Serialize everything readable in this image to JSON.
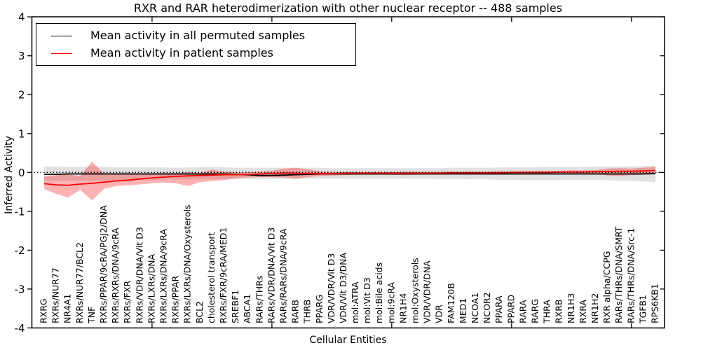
{
  "chart_data": {
    "type": "line",
    "title": "RXR and RAR heterodimerization with other nuclear receptor -- 488 samples",
    "xlabel": "Cellular Entities",
    "ylabel": "Inferred Activity",
    "ylim": [
      -4,
      4
    ],
    "ytick_labels": [
      "4",
      "3",
      "2",
      "1",
      "0",
      "-1",
      "-2",
      "-3",
      "-4"
    ],
    "ytick_values": [
      4,
      3,
      2,
      1,
      0,
      -1,
      -2,
      -3,
      -4
    ],
    "xtick_major_indices": [
      9,
      19,
      29,
      39,
      49
    ],
    "grid": false,
    "legend_position": "upper left",
    "zero_reference_line": 0,
    "categories": [
      "RXRG",
      "RXRs/NUR77",
      "NR4A1",
      "RXRs/NUR77/BCL2",
      "TNF",
      "RXRs/PPAR/9cRA/PGJ2/DNA",
      "RXRs/RXRs/DNA/9cRA",
      "RXRs/FXR",
      "RXRs/VDR/DNA/Vit D3",
      "RXRs/LXRs/DNA",
      "RXRs/LXRs/DNA/9cRA",
      "RXRs/PPAR",
      "RXRs/LXRs/DNA/Oxysterols",
      "BCL2",
      "cholesterol transport",
      "RXRs/FXR/9cRA/MED1",
      "SREBF1",
      "ABCA1",
      "RARs/THRs",
      "RARs/VDR/DNA/Vit D3",
      "RARs/RARs/DNA/9cRA",
      "RARB",
      "THRB",
      "PPARG",
      "VDR/VDR/Vit D3",
      "VDR/Vit D3/DNA",
      "mol:ATRA",
      "mol:Vit D3",
      "mol:Bile acids",
      "mol:9cRA",
      "NR1H4",
      "mol:Oxysterols",
      "VDR/VDR/DNA",
      "VDR",
      "FAM120B",
      "MED1",
      "NCOA1",
      "NCOR2",
      "PPARA",
      "PPARD",
      "RARA",
      "RARG",
      "THRA",
      "RXRB",
      "NR1H3",
      "RXRA",
      "NR1H2",
      "RXR alpha/CCPG",
      "RARs/THRs/DNA/SMRT",
      "RARs/THRs/DNA/Src-1",
      "TGFB1",
      "RPS6KB1"
    ],
    "series": [
      {
        "name": "Mean activity in all permuted samples",
        "color": "#000000",
        "style": "solid",
        "values": [
          -0.05,
          -0.05,
          -0.04,
          -0.04,
          -0.04,
          -0.04,
          -0.04,
          -0.04,
          -0.04,
          -0.04,
          -0.04,
          -0.04,
          -0.04,
          -0.04,
          -0.04,
          -0.04,
          -0.05,
          -0.06,
          -0.08,
          -0.08,
          -0.07,
          -0.06,
          -0.05,
          -0.04,
          -0.04,
          -0.04,
          -0.04,
          -0.04,
          -0.04,
          -0.04,
          -0.04,
          -0.04,
          -0.04,
          -0.04,
          -0.04,
          -0.04,
          -0.04,
          -0.04,
          -0.04,
          -0.04,
          -0.04,
          -0.04,
          -0.04,
          -0.04,
          -0.04,
          -0.04,
          -0.04,
          -0.04,
          -0.04,
          -0.04,
          -0.04,
          -0.03
        ]
      },
      {
        "name": "Mean activity in patient samples",
        "color": "#ff0000",
        "style": "solid",
        "values": [
          -0.29,
          -0.32,
          -0.33,
          -0.3,
          -0.28,
          -0.25,
          -0.22,
          -0.2,
          -0.17,
          -0.14,
          -0.12,
          -0.1,
          -0.09,
          -0.08,
          -0.07,
          -0.06,
          -0.06,
          -0.05,
          -0.04,
          -0.03,
          -0.02,
          -0.02,
          -0.03,
          -0.03,
          -0.03,
          -0.02,
          -0.02,
          -0.02,
          -0.02,
          -0.02,
          -0.02,
          -0.02,
          -0.02,
          -0.02,
          -0.01,
          -0.01,
          -0.01,
          -0.01,
          -0.01,
          0.0,
          0.0,
          0.0,
          0.0,
          0.01,
          0.01,
          0.01,
          0.02,
          0.02,
          0.03,
          0.03,
          0.04,
          0.05
        ]
      }
    ],
    "bands": [
      {
        "name": "permuted samples range",
        "color": "#888888",
        "opacity": 0.25,
        "hi": [
          0.15,
          0.15,
          0.14,
          0.14,
          0.16,
          0.14,
          0.13,
          0.13,
          0.13,
          0.13,
          0.13,
          0.12,
          0.13,
          0.13,
          0.14,
          0.13,
          0.12,
          0.12,
          0.12,
          0.12,
          0.12,
          0.12,
          0.12,
          0.12,
          0.11,
          0.11,
          0.11,
          0.11,
          0.11,
          0.11,
          0.11,
          0.11,
          0.11,
          0.11,
          0.12,
          0.12,
          0.12,
          0.12,
          0.13,
          0.13,
          0.13,
          0.13,
          0.14,
          0.14,
          0.14,
          0.14,
          0.15,
          0.15,
          0.15,
          0.16,
          0.16,
          0.17
        ],
        "lo": [
          -0.22,
          -0.22,
          -0.21,
          -0.21,
          -0.22,
          -0.21,
          -0.2,
          -0.2,
          -0.19,
          -0.19,
          -0.18,
          -0.18,
          -0.18,
          -0.18,
          -0.18,
          -0.17,
          -0.17,
          -0.17,
          -0.17,
          -0.17,
          -0.17,
          -0.17,
          -0.16,
          -0.16,
          -0.16,
          -0.16,
          -0.16,
          -0.16,
          -0.16,
          -0.16,
          -0.16,
          -0.16,
          -0.16,
          -0.17,
          -0.17,
          -0.17,
          -0.18,
          -0.18,
          -0.19,
          -0.19,
          -0.2,
          -0.2,
          -0.2,
          -0.2,
          -0.19,
          -0.19,
          -0.19,
          -0.2,
          -0.21,
          -0.22,
          -0.23,
          -0.25
        ]
      },
      {
        "name": "patient samples range",
        "color": "#ff0000",
        "opacity": 0.3,
        "hi": [
          -0.11,
          -0.07,
          -0.05,
          -0.1,
          0.28,
          -0.04,
          -0.03,
          -0.04,
          -0.04,
          -0.03,
          -0.02,
          -0.02,
          0.0,
          -0.02,
          0.07,
          0.02,
          0.0,
          0.0,
          0.02,
          0.04,
          0.1,
          0.12,
          0.08,
          0.03,
          0.01,
          0.01,
          0.01,
          0.01,
          0.01,
          0.01,
          0.02,
          0.02,
          0.01,
          0.01,
          0.02,
          0.02,
          0.02,
          0.02,
          0.03,
          0.03,
          0.03,
          0.04,
          0.04,
          0.04,
          0.05,
          0.05,
          0.06,
          0.1,
          0.11,
          0.1,
          0.12,
          0.14
        ],
        "lo": [
          -0.42,
          -0.55,
          -0.65,
          -0.45,
          -0.72,
          -0.42,
          -0.35,
          -0.33,
          -0.31,
          -0.28,
          -0.26,
          -0.28,
          -0.35,
          -0.25,
          -0.22,
          -0.2,
          -0.15,
          -0.13,
          -0.12,
          -0.12,
          -0.13,
          -0.16,
          -0.12,
          -0.09,
          -0.08,
          -0.07,
          -0.06,
          -0.06,
          -0.06,
          -0.06,
          -0.07,
          -0.06,
          -0.06,
          -0.05,
          -0.05,
          -0.05,
          -0.05,
          -0.05,
          -0.05,
          -0.05,
          -0.04,
          -0.04,
          -0.04,
          -0.04,
          -0.04,
          -0.03,
          -0.03,
          -0.08,
          -0.09,
          -0.07,
          -0.06,
          -0.05
        ]
      }
    ]
  }
}
